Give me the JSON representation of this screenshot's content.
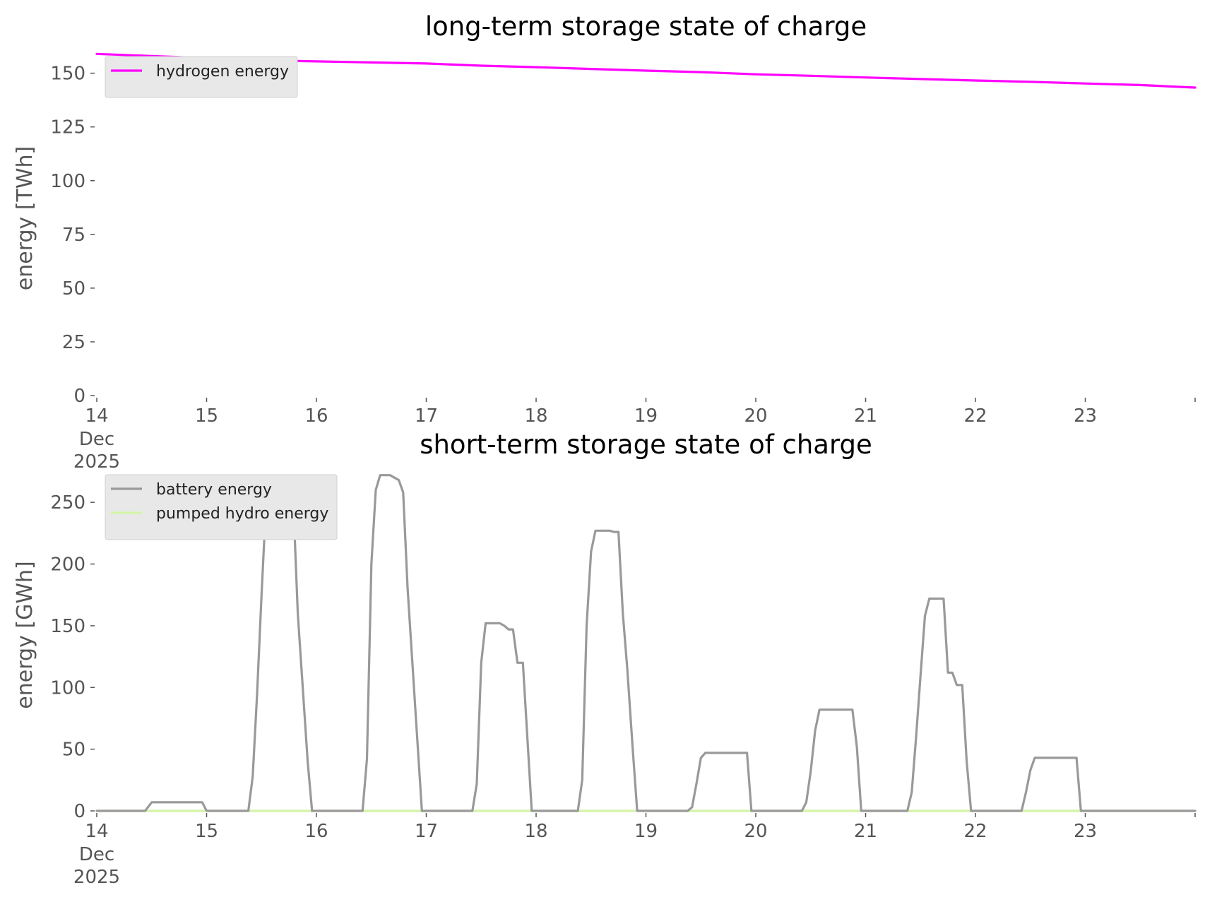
{
  "chart_data": [
    {
      "type": "line",
      "title": "long-term storage state of charge",
      "ylabel": "energy [TWh]",
      "xlabel": "",
      "ylim": [
        0,
        165
      ],
      "yticks": [
        0,
        25,
        50,
        75,
        100,
        125,
        150
      ],
      "xlim": [
        14,
        24
      ],
      "xticks": [
        {
          "value": 14,
          "label": "14",
          "sub": [
            "Dec",
            "2025"
          ]
        },
        {
          "value": 15,
          "label": "15"
        },
        {
          "value": 16,
          "label": "16"
        },
        {
          "value": 17,
          "label": "17"
        },
        {
          "value": 18,
          "label": "18"
        },
        {
          "value": 19,
          "label": "19"
        },
        {
          "value": 20,
          "label": "20"
        },
        {
          "value": 21,
          "label": "21"
        },
        {
          "value": 22,
          "label": "22"
        },
        {
          "value": 23,
          "label": "23"
        }
      ],
      "legend_position": "top-left",
      "series": [
        {
          "name": "hydrogen energy",
          "color": "#ff00ff",
          "x": [
            14,
            14.5,
            15,
            15.5,
            16,
            16.5,
            17,
            17.5,
            18,
            18.5,
            19,
            19.5,
            20,
            20.5,
            21,
            21.5,
            22,
            22.5,
            23,
            23.5,
            24
          ],
          "y": [
            159,
            158,
            157,
            156,
            155.5,
            155,
            154.5,
            153.5,
            152.8,
            152,
            151.2,
            150.5,
            149.5,
            148.8,
            148,
            147.3,
            146.6,
            146,
            145.2,
            144.5,
            143.3
          ]
        }
      ]
    },
    {
      "type": "line",
      "title": "short-term storage state of charge",
      "ylabel": "energy [GWh]",
      "xlabel": "",
      "ylim": [
        0,
        285
      ],
      "yticks": [
        0,
        50,
        100,
        150,
        200,
        250
      ],
      "xlim": [
        14,
        24
      ],
      "xticks": [
        {
          "value": 14,
          "label": "14",
          "sub": [
            "Dec",
            "2025"
          ]
        },
        {
          "value": 15,
          "label": "15"
        },
        {
          "value": 16,
          "label": "16"
        },
        {
          "value": 17,
          "label": "17"
        },
        {
          "value": 18,
          "label": "18"
        },
        {
          "value": 19,
          "label": "19"
        },
        {
          "value": 20,
          "label": "20"
        },
        {
          "value": 21,
          "label": "21"
        },
        {
          "value": 22,
          "label": "22"
        },
        {
          "value": 23,
          "label": "23"
        }
      ],
      "legend_position": "top-left",
      "series": [
        {
          "name": "battery energy",
          "color": "#999999",
          "x": [
            14,
            14.44,
            14.5,
            14.92,
            14.96,
            15.0,
            15.38,
            15.42,
            15.46,
            15.5,
            15.54,
            15.58,
            15.63,
            15.67,
            15.71,
            15.75,
            15.79,
            15.83,
            15.92,
            15.96,
            16.42,
            16.46,
            16.5,
            16.54,
            16.58,
            16.63,
            16.67,
            16.71,
            16.75,
            16.79,
            16.83,
            16.92,
            16.96,
            17.42,
            17.46,
            17.5,
            17.54,
            17.58,
            17.63,
            17.67,
            17.71,
            17.75,
            17.79,
            17.83,
            17.88,
            17.96,
            18.38,
            18.42,
            18.46,
            18.5,
            18.54,
            18.58,
            18.63,
            18.67,
            18.71,
            18.75,
            18.79,
            18.83,
            18.88,
            18.92,
            19.38,
            19.42,
            19.46,
            19.5,
            19.54,
            19.63,
            19.71,
            19.79,
            19.88,
            19.92,
            19.96,
            20.42,
            20.46,
            20.5,
            20.54,
            20.58,
            20.63,
            20.71,
            20.79,
            20.88,
            20.92,
            20.96,
            21.38,
            21.42,
            21.46,
            21.5,
            21.54,
            21.58,
            21.63,
            21.71,
            21.75,
            21.79,
            21.83,
            21.88,
            21.92,
            21.96,
            22.42,
            22.46,
            22.5,
            22.54,
            22.58,
            22.63,
            22.71,
            22.79,
            22.88,
            22.92,
            22.96,
            24
          ],
          "y": [
            0,
            0,
            7,
            7,
            7,
            0,
            0,
            28,
            95,
            175,
            248,
            262,
            262,
            262,
            258,
            255,
            250,
            160,
            40,
            0,
            0,
            42,
            200,
            260,
            272,
            272,
            272,
            270,
            268,
            258,
            180,
            55,
            0,
            0,
            22,
            120,
            152,
            152,
            152,
            152,
            150,
            147,
            147,
            120,
            120,
            0,
            0,
            25,
            150,
            210,
            227,
            227,
            227,
            227,
            226,
            226,
            160,
            115,
            50,
            0,
            0,
            3,
            22,
            43,
            47,
            47,
            47,
            47,
            47,
            47,
            0,
            0,
            7,
            32,
            65,
            82,
            82,
            82,
            82,
            82,
            52,
            0,
            0,
            15,
            60,
            110,
            158,
            172,
            172,
            172,
            112,
            112,
            102,
            102,
            40,
            0,
            0,
            15,
            33,
            43,
            43,
            43,
            43,
            43,
            43,
            43,
            0,
            0
          ]
        },
        {
          "name": "pumped hydro energy",
          "color": "#d4f4a6",
          "x": [
            14,
            24
          ],
          "y": [
            0,
            0
          ]
        }
      ]
    }
  ]
}
